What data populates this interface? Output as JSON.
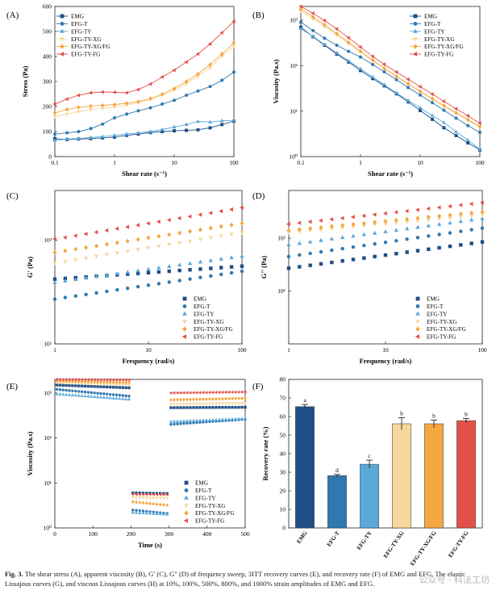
{
  "colors": {
    "EMG": "#1f4e86",
    "EFG-T": "#2f79b0",
    "EFG-TY": "#5aa8d8",
    "EFG-TY-XG": "#f7d79c",
    "EFG-TY-XG/FG": "#f5a742",
    "EFG-TY-FG": "#e2504a"
  },
  "chart_data": [
    {
      "id": "A",
      "panel_label": "(A)",
      "type": "line",
      "x_scale": "log",
      "xlabel": "Shear rate (s⁻¹)",
      "ylabel": "Stress (Pa)",
      "xlim": [
        0.1,
        100
      ],
      "ylim": [
        0,
        600
      ],
      "xticks": [
        0.1,
        1,
        10,
        100
      ],
      "xtick_labels": [
        "0.1",
        "1",
        "10",
        "100"
      ],
      "yticks": [
        0,
        100,
        200,
        300,
        400,
        500,
        600
      ],
      "ytick_labels": [
        "0",
        "100",
        "200",
        "300",
        "400",
        "500",
        "600"
      ],
      "legend": "top-left",
      "x": [
        0.1,
        0.16,
        0.25,
        0.4,
        0.63,
        1,
        1.6,
        2.5,
        4,
        6.3,
        10,
        16,
        25,
        40,
        63,
        100
      ],
      "series": [
        {
          "name": "EMG",
          "marker": "square",
          "values": [
            72,
            68,
            70,
            72,
            75,
            78,
            85,
            90,
            96,
            100,
            103,
            105,
            107,
            115,
            128,
            142
          ]
        },
        {
          "name": "EFG-T",
          "marker": "circle",
          "values": [
            90,
            95,
            100,
            112,
            130,
            155,
            170,
            183,
            195,
            210,
            225,
            245,
            262,
            280,
            305,
            338
          ]
        },
        {
          "name": "EFG-TY",
          "marker": "triangle-up",
          "values": [
            65,
            70,
            72,
            76,
            80,
            85,
            90,
            95,
            100,
            108,
            118,
            128,
            140,
            138,
            143,
            145
          ]
        },
        {
          "name": "EFG-TY-XG",
          "marker": "triangle-down",
          "values": [
            160,
            170,
            180,
            188,
            193,
            198,
            205,
            215,
            228,
            245,
            265,
            290,
            320,
            355,
            400,
            440
          ]
        },
        {
          "name": "EFG-TY-XG/FG",
          "marker": "diamond",
          "values": [
            175,
            188,
            197,
            202,
            205,
            208,
            213,
            220,
            232,
            250,
            272,
            300,
            330,
            368,
            410,
            455
          ]
        },
        {
          "name": "EFG-TY-FG",
          "marker": "triangle-left",
          "values": [
            210,
            230,
            245,
            255,
            258,
            257,
            255,
            268,
            290,
            318,
            345,
            378,
            410,
            450,
            495,
            540
          ]
        }
      ]
    },
    {
      "id": "B",
      "panel_label": "(B)",
      "type": "line",
      "x_scale": "log",
      "y_scale": "log",
      "xlabel": "Shear rate (s⁻¹)",
      "ylabel": "Viscosity (Pa.s)",
      "xlim": [
        0.1,
        100
      ],
      "ylim": [
        1,
        2000
      ],
      "xticks": [
        0.1,
        1,
        10,
        100
      ],
      "xtick_labels": [
        "0.1",
        "1",
        "10",
        "100"
      ],
      "yticks": [
        1,
        10,
        100,
        1000
      ],
      "ytick_labels": [
        "10⁰",
        "10¹",
        "10²",
        "10³"
      ],
      "legend": "top-right",
      "x": [
        0.1,
        0.16,
        0.25,
        0.4,
        0.63,
        1,
        1.6,
        2.5,
        4,
        6.3,
        10,
        16,
        25,
        40,
        63,
        100
      ],
      "series": [
        {
          "name": "EMG",
          "marker": "square",
          "values": [
            700,
            430,
            280,
            180,
            120,
            78,
            52,
            36,
            24,
            16,
            10.3,
            6.6,
            4.3,
            2.9,
            2.0,
            1.4
          ]
        },
        {
          "name": "EFG-T",
          "marker": "circle",
          "values": [
            900,
            590,
            400,
            280,
            206,
            155,
            106,
            73,
            49,
            33,
            22.5,
            15.3,
            10.5,
            7.0,
            4.8,
            3.4
          ]
        },
        {
          "name": "EFG-TY",
          "marker": "triangle-up",
          "values": [
            650,
            440,
            290,
            190,
            127,
            85,
            56,
            38,
            25,
            17.1,
            11.8,
            8.0,
            5.6,
            3.5,
            2.3,
            1.45
          ]
        },
        {
          "name": "EFG-TY-XG",
          "marker": "triangle-down",
          "values": [
            1600,
            1060,
            720,
            470,
            306,
            198,
            128,
            86,
            57,
            39,
            26.5,
            18.1,
            12.8,
            8.9,
            6.3,
            4.4
          ]
        },
        {
          "name": "EFG-TY-XG/FG",
          "marker": "diamond",
          "values": [
            1750,
            1175,
            788,
            505,
            325,
            208,
            133,
            88,
            58,
            40,
            27.2,
            18.8,
            13.2,
            9.2,
            6.5,
            4.55
          ]
        },
        {
          "name": "EFG-TY-FG",
          "marker": "triangle-left",
          "values": [
            2000,
            1420,
            980,
            640,
            410,
            257,
            160,
            107,
            72.5,
            50,
            34.5,
            23.6,
            16.4,
            11.3,
            7.9,
            5.4
          ]
        }
      ]
    },
    {
      "id": "C",
      "panel_label": "(C)",
      "type": "scatter",
      "x_scale": "log",
      "y_scale": "log",
      "xlabel": "Frequency (rad/s)",
      "ylabel": "G′ (Pa)",
      "xlim": [
        1,
        100
      ],
      "ylim": [
        100,
        3000
      ],
      "xticks": [
        1,
        10,
        100
      ],
      "xtick_labels": [
        "1",
        "10",
        "100"
      ],
      "yticks": [
        100,
        1000
      ],
      "ytick_labels": [
        "10²",
        "10³"
      ],
      "legend": "bottom-right",
      "series": [
        {
          "name": "EMG",
          "marker": "square",
          "start": 1,
          "end": 100,
          "y_start": 420,
          "y_end": 560
        },
        {
          "name": "EFG-T",
          "marker": "circle",
          "start": 1,
          "end": 100,
          "y_start": 270,
          "y_end": 500
        },
        {
          "name": "EFG-TY",
          "marker": "triangle-up",
          "start": 1,
          "end": 100,
          "y_start": 390,
          "y_end": 700
        },
        {
          "name": "EFG-TY-XG",
          "marker": "triangle-down",
          "start": 1,
          "end": 100,
          "y_start": 600,
          "y_end": 1180
        },
        {
          "name": "EFG-TY-XG/FG",
          "marker": "diamond",
          "start": 1,
          "end": 100,
          "y_start": 760,
          "y_end": 1450
        },
        {
          "name": "EFG-TY-FG",
          "marker": "triangle-left",
          "start": 1,
          "end": 100,
          "y_start": 1020,
          "y_end": 2050
        }
      ]
    },
    {
      "id": "D",
      "panel_label": "(D)",
      "type": "scatter",
      "x_scale": "log",
      "y_scale": "log",
      "xlabel": "Frequency (rad/s)",
      "ylabel": "G″ (Pa)",
      "xlim": [
        1,
        100
      ],
      "ylim": [
        1,
        800
      ],
      "xticks": [
        1,
        10,
        100
      ],
      "xtick_labels": [
        "1",
        "10",
        "100"
      ],
      "yticks": [
        10,
        100
      ],
      "ytick_labels": [
        "10¹",
        "10²"
      ],
      "legend": "bottom-right",
      "series": [
        {
          "name": "EMG",
          "marker": "square",
          "start": 1,
          "end": 100,
          "y_start": 27,
          "y_end": 85
        },
        {
          "name": "EFG-T",
          "marker": "circle",
          "start": 1,
          "end": 100,
          "y_start": 45,
          "y_end": 155
        },
        {
          "name": "EFG-TY",
          "marker": "triangle-up",
          "start": 1,
          "end": 100,
          "y_start": 75,
          "y_end": 235
        },
        {
          "name": "EFG-TY-XG",
          "marker": "triangle-down",
          "start": 1,
          "end": 100,
          "y_start": 128,
          "y_end": 275
        },
        {
          "name": "EFG-TY-XG/FG",
          "marker": "diamond",
          "start": 1,
          "end": 100,
          "y_start": 140,
          "y_end": 315
        },
        {
          "name": "EFG-TY-FG",
          "marker": "triangle-left",
          "start": 1,
          "end": 100,
          "y_start": 185,
          "y_end": 470
        }
      ]
    },
    {
      "id": "E",
      "panel_label": "(E)",
      "type": "scatter",
      "y_scale": "log",
      "xlabel": "Time (s)",
      "ylabel": "Viscosity (Pa.s)",
      "xlim": [
        0,
        500
      ],
      "ylim": [
        1,
        2000
      ],
      "xticks": [
        0,
        100,
        200,
        300,
        400,
        500
      ],
      "xtick_labels": [
        "0",
        "100",
        "200",
        "300",
        "400",
        "500"
      ],
      "yticks": [
        1,
        10,
        100,
        1000
      ],
      "ytick_labels": [
        "10⁰",
        "10¹",
        "10²",
        "10³"
      ],
      "legend": "bottom-right",
      "series": [
        {
          "name": "EMG",
          "marker": "square",
          "segments": [
            {
              "x0": 5,
              "x1": 195,
              "y0": 1500,
              "y1": 1300
            },
            {
              "x0": 205,
              "x1": 295,
              "y0": 6.0,
              "y1": 5.8
            },
            {
              "x0": 305,
              "x1": 500,
              "y0": 470,
              "y1": 480
            }
          ]
        },
        {
          "name": "EFG-T",
          "marker": "circle",
          "segments": [
            {
              "x0": 5,
              "x1": 195,
              "y0": 1200,
              "y1": 850
            },
            {
              "x0": 205,
              "x1": 295,
              "y0": 2.5,
              "y1": 2.1
            },
            {
              "x0": 305,
              "x1": 500,
              "y0": 200,
              "y1": 260
            }
          ]
        },
        {
          "name": "EFG-TY",
          "marker": "triangle-up",
          "segments": [
            {
              "x0": 5,
              "x1": 195,
              "y0": 950,
              "y1": 720
            },
            {
              "x0": 205,
              "x1": 295,
              "y0": 2.2,
              "y1": 2.0
            },
            {
              "x0": 305,
              "x1": 500,
              "y0": 230,
              "y1": 270
            }
          ]
        },
        {
          "name": "EFG-TY-XG",
          "marker": "triangle-down",
          "segments": [
            {
              "x0": 5,
              "x1": 195,
              "y0": 1700,
              "y1": 1500
            },
            {
              "x0": 205,
              "x1": 295,
              "y0": 4.8,
              "y1": 4.6
            },
            {
              "x0": 305,
              "x1": 500,
              "y0": 560,
              "y1": 590
            }
          ]
        },
        {
          "name": "EFG-TY-XG/FG",
          "marker": "diamond",
          "segments": [
            {
              "x0": 5,
              "x1": 195,
              "y0": 1850,
              "y1": 1700
            },
            {
              "x0": 205,
              "x1": 295,
              "y0": 3.8,
              "y1": 3.2
            },
            {
              "x0": 305,
              "x1": 500,
              "y0": 700,
              "y1": 760
            }
          ]
        },
        {
          "name": "EFG-TY-FG",
          "marker": "triangle-left",
          "segments": [
            {
              "x0": 5,
              "x1": 195,
              "y0": 2000,
              "y1": 1950
            },
            {
              "x0": 205,
              "x1": 295,
              "y0": 5.6,
              "y1": 5.5
            },
            {
              "x0": 305,
              "x1": 500,
              "y0": 1000,
              "y1": 1050
            }
          ]
        }
      ]
    },
    {
      "id": "F",
      "panel_label": "(F)",
      "type": "bar",
      "xlabel": "",
      "ylabel": "Recovery rate (%)",
      "ylim": [
        0,
        80
      ],
      "yticks": [
        0,
        10,
        20,
        30,
        40,
        50,
        60,
        70,
        80
      ],
      "ytick_labels": [
        "0",
        "10",
        "20",
        "30",
        "40",
        "50",
        "60",
        "70",
        "80"
      ],
      "categories": [
        "EMG",
        "EFG-T",
        "EFG-TY",
        "EFG-TY-XG",
        "EFG-TY-XG/FG",
        "EFG-TY-FG"
      ],
      "values": [
        65.3,
        28.2,
        34.3,
        56.1,
        56.1,
        57.8
      ],
      "errors": [
        1.2,
        0.6,
        2.2,
        3.2,
        2.0,
        1.1
      ],
      "significance": [
        "a",
        "d",
        "c",
        "b",
        "b",
        "b"
      ]
    }
  ],
  "caption": {
    "label": "Fig. 3.",
    "text": "The shear stress (A), apparent viscosity (B), G′ (C), G″ (D) of frequency sweep, 3ITT recovery curves (E), and recovery rate (F) of EMG and EFG. The elastic Lissajous curves (G), and viscous Lissajous curves (H) at 10%, 100%, 500%, 800%, and 1000% strain amplitudes of EMG and EFG."
  },
  "watermark": "公众号 · 科法工坊"
}
